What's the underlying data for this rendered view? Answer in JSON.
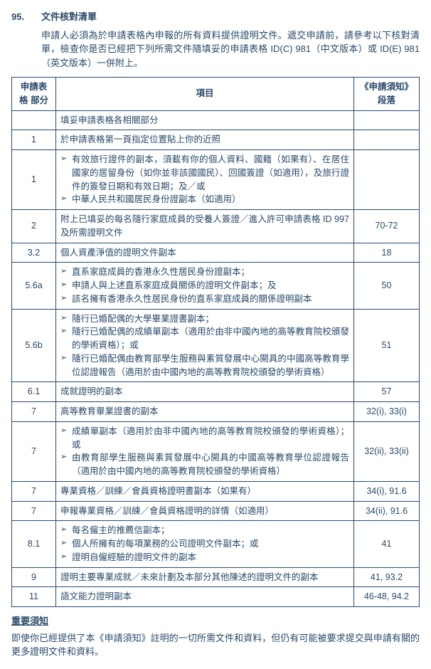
{
  "section_number": "95.",
  "section_title": "文件核對清單",
  "intro": "申請人必須為於申請表格內申報的所有資料提供證明文件。遞交申請前，請參考以下核對清單，檢查你是否已經把下列所需文件隨填妥的申請表格 ID(C) 981（中文版本）或 ID(E) 981（英文版本）一併附上。",
  "headers": {
    "part": "申請表格\n部分",
    "item": "項目",
    "para": "《申請須知》\n段落"
  },
  "rows": [
    {
      "part": "",
      "type": "plain",
      "item": "填妥申請表格各相關部分",
      "para": ""
    },
    {
      "part": "1",
      "type": "plain",
      "item": "於申請表格第一頁指定位置貼上你的近照",
      "para": ""
    },
    {
      "part": "1",
      "type": "list",
      "items": [
        "有效旅行證件的副本，須載有你的個人資料、國籍（如果有）、在居住國家的居留身份（如你並非該國國民）、回國簽證（如適用），及旅行證件的簽發日期和有效日期；及／或",
        "中華人民共和國居民身份證副本（如適用）"
      ],
      "para": ""
    },
    {
      "part": "2",
      "type": "plain",
      "item": "附上已填妥的每名隨行家庭成員的受養人簽證／進入許可申請表格 ID 997 及所需證明文件",
      "para": "70-72"
    },
    {
      "part": "3.2",
      "type": "plain",
      "item": "個人資產淨值的證明文件副本",
      "para": "18"
    },
    {
      "part": "5.6a",
      "type": "list",
      "items": [
        "直系家庭成員的香港永久性居民身份證副本；",
        "申請人與上述直系家庭成員關係的證明文件副本；及",
        "該名擁有香港永久性居民身份的直系家庭成員的關係證明副本"
      ],
      "para": "50"
    },
    {
      "part": "5.6b",
      "type": "list",
      "items": [
        "隨行已婚配偶的大學畢業證書副本；",
        "隨行已婚配偶的成績單副本（適用於由非中國內地的高等教育院校頒發的學術資格）；或",
        "隨行已婚配偶由教育部學生服務與素質發展中心開具的中國高等教育學位認證報告（適用於由中國內地的高等教育院校頒發的學術資格）"
      ],
      "para": "51"
    },
    {
      "part": "6.1",
      "type": "plain",
      "item": "成就證明的副本",
      "para": "57"
    },
    {
      "part": "7",
      "type": "plain",
      "item": "高等教育畢業證書的副本",
      "para": "32(i), 33(i)"
    },
    {
      "part": "7",
      "type": "list",
      "items": [
        "成績單副本（適用於由非中國內地的高等教育院校頒發的學術資格）；或",
        "由教育部學生服務與素質發展中心開具的中國高等教育學位認證報告（適用於由中國內地的高等教育院校頒發的學術資格）"
      ],
      "para": "32(ii), 33(ii)"
    },
    {
      "part": "7",
      "type": "plain",
      "item": "專業資格／訓練／會員資格證明書副本（如果有）",
      "para": "34(i), 91.6"
    },
    {
      "part": "7",
      "type": "plain",
      "item": "申報專業資格／訓練／會員資格證明的詳情（如適用）",
      "para": "34(ii), 91.6"
    },
    {
      "part": "8.1",
      "type": "list",
      "items": [
        "每名僱主的推薦信副本；",
        "個人所擁有的每項業務的公司證明文件副本；或",
        "證明自僱經驗的證明文件的副本"
      ],
      "para": "41"
    },
    {
      "part": "9",
      "type": "plain",
      "item": "證明主要專業成就／未來計劃及本部分其他陳述的證明文件的副本",
      "para": "41, 93.2"
    },
    {
      "part": "11",
      "type": "plain",
      "item": "語文能力證明副本",
      "para": "46-48, 94.2"
    }
  ],
  "note_title": "重要須知",
  "note_body": "即使你已經提供了本《申請須知》註明的一切所需文件和資料，但仍有可能被要求提交與申請有關的更多證明文件和資料。"
}
